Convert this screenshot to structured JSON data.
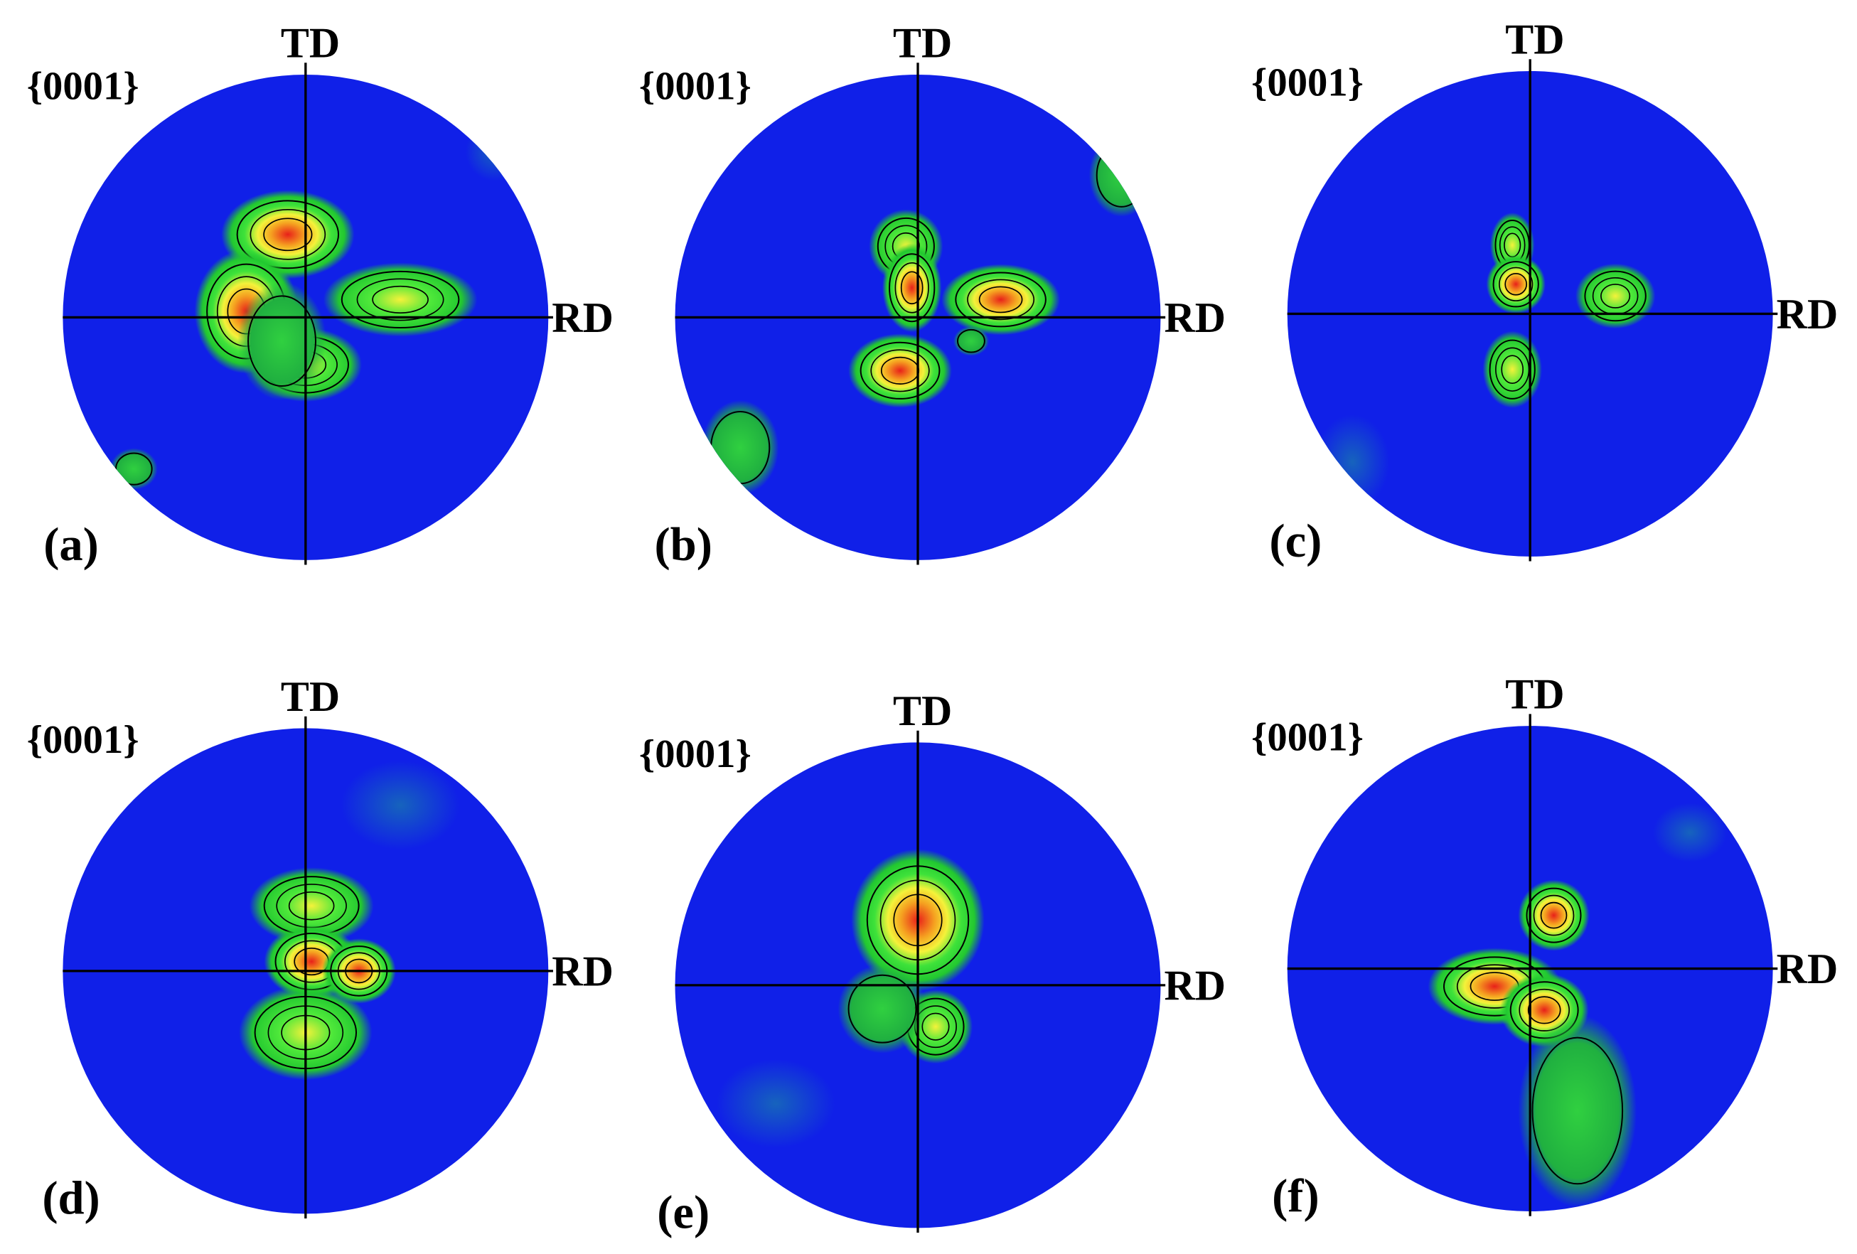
{
  "panels": [
    {
      "label": "(a)",
      "plane": "{0001}",
      "td": "TD",
      "rd": "RD"
    },
    {
      "label": "(b)",
      "plane": "{0001}",
      "td": "TD",
      "rd": "RD"
    },
    {
      "label": "(c)",
      "plane": "{0001}",
      "td": "TD",
      "rd": "RD"
    },
    {
      "label": "(d)",
      "plane": "{0001}",
      "td": "TD",
      "rd": "RD"
    },
    {
      "label": "(e)",
      "plane": "{0001}",
      "td": "TD",
      "rd": "RD"
    },
    {
      "label": "(f)",
      "plane": "{0001}",
      "td": "TD",
      "rd": "RD"
    }
  ]
}
